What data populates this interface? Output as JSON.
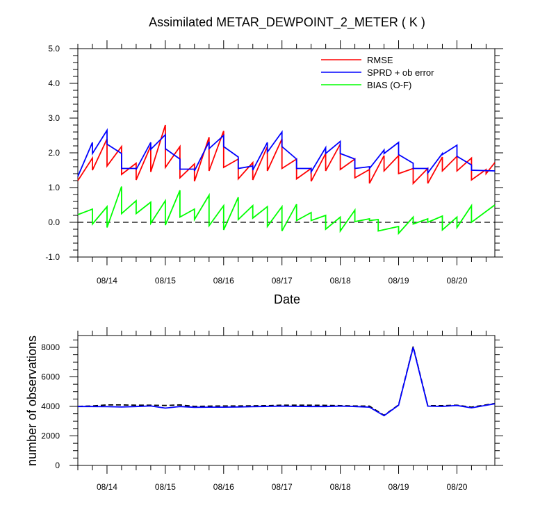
{
  "chart_data": [
    {
      "type": "line",
      "title": "Assimilated METAR_DEWPOINT_2_METER ( K )",
      "xlabel": "Date",
      "ylabel": "",
      "xlim": [
        0,
        7.15
      ],
      "ylim": [
        -1.0,
        5.0
      ],
      "x_ticks": [
        {
          "x": 0.5,
          "label": "08/14"
        },
        {
          "x": 1.5,
          "label": "08/15"
        },
        {
          "x": 2.5,
          "label": "08/16"
        },
        {
          "x": 3.5,
          "label": "08/17"
        },
        {
          "x": 4.5,
          "label": "08/18"
        },
        {
          "x": 5.5,
          "label": "08/19"
        },
        {
          "x": 6.5,
          "label": "08/20"
        }
      ],
      "y_ticks": [
        {
          "y": -1.0,
          "label": "-1.0"
        },
        {
          "y": 0.0,
          "label": "0.0"
        },
        {
          "y": 1.0,
          "label": "1.0"
        },
        {
          "y": 2.0,
          "label": "2.0"
        },
        {
          "y": 3.0,
          "label": "3.0"
        },
        {
          "y": 4.0,
          "label": "4.0"
        },
        {
          "y": 5.0,
          "label": "5.0"
        }
      ],
      "reference_line": {
        "y": 0.0,
        "style": "dashed"
      },
      "legend_position": "top-right",
      "series": [
        {
          "name": "RMSE",
          "color": "#ff0000",
          "points": [
            [
              0.0,
              1.2
            ],
            [
              0.25,
              1.85
            ],
            [
              0.25,
              1.5
            ],
            [
              0.5,
              2.4
            ],
            [
              0.5,
              1.62
            ],
            [
              0.75,
              2.18
            ],
            [
              0.75,
              1.38
            ],
            [
              1.0,
              1.7
            ],
            [
              1.0,
              1.22
            ],
            [
              1.25,
              2.2
            ],
            [
              1.25,
              1.45
            ],
            [
              1.5,
              2.8
            ],
            [
              1.5,
              1.58
            ],
            [
              1.75,
              2.18
            ],
            [
              1.75,
              1.28
            ],
            [
              2.0,
              1.68
            ],
            [
              2.0,
              1.18
            ],
            [
              2.25,
              2.45
            ],
            [
              2.25,
              1.48
            ],
            [
              2.5,
              2.63
            ],
            [
              2.5,
              1.58
            ],
            [
              2.75,
              1.82
            ],
            [
              2.75,
              1.25
            ],
            [
              3.0,
              1.72
            ],
            [
              3.0,
              1.22
            ],
            [
              3.25,
              2.18
            ],
            [
              3.25,
              1.48
            ],
            [
              3.5,
              2.4
            ],
            [
              3.5,
              1.55
            ],
            [
              3.75,
              1.82
            ],
            [
              3.75,
              1.25
            ],
            [
              4.0,
              1.55
            ],
            [
              4.0,
              1.18
            ],
            [
              4.25,
              1.98
            ],
            [
              4.25,
              1.48
            ],
            [
              4.5,
              2.25
            ],
            [
              4.5,
              1.52
            ],
            [
              4.75,
              1.82
            ],
            [
              4.75,
              1.28
            ],
            [
              5.0,
              1.52
            ],
            [
              5.0,
              1.12
            ],
            [
              5.25,
              1.92
            ],
            [
              5.25,
              1.48
            ],
            [
              5.5,
              1.92
            ],
            [
              5.5,
              1.4
            ],
            [
              5.75,
              1.55
            ],
            [
              5.75,
              1.12
            ],
            [
              6.0,
              1.55
            ],
            [
              6.0,
              1.12
            ],
            [
              6.25,
              1.88
            ],
            [
              6.25,
              1.48
            ],
            [
              6.5,
              1.9
            ],
            [
              6.5,
              1.48
            ],
            [
              6.75,
              1.85
            ],
            [
              6.75,
              1.22
            ],
            [
              7.0,
              1.52
            ],
            [
              7.0,
              1.4
            ],
            [
              7.15,
              1.72
            ]
          ]
        },
        {
          "name": "SPRD + ob error",
          "color": "#0000ff",
          "points": [
            [
              0.0,
              1.32
            ],
            [
              0.25,
              2.3
            ],
            [
              0.25,
              1.98
            ],
            [
              0.5,
              2.65
            ],
            [
              0.5,
              2.25
            ],
            [
              0.75,
              1.98
            ],
            [
              0.75,
              1.55
            ],
            [
              1.0,
              1.55
            ],
            [
              1.0,
              1.52
            ],
            [
              1.25,
              2.3
            ],
            [
              1.25,
              2.1
            ],
            [
              1.5,
              2.52
            ],
            [
              1.5,
              2.12
            ],
            [
              1.75,
              1.82
            ],
            [
              1.75,
              1.53
            ],
            [
              2.0,
              1.53
            ],
            [
              2.0,
              1.48
            ],
            [
              2.25,
              2.32
            ],
            [
              2.25,
              2.12
            ],
            [
              2.5,
              2.5
            ],
            [
              2.5,
              2.18
            ],
            [
              2.75,
              1.88
            ],
            [
              2.75,
              1.55
            ],
            [
              3.0,
              1.62
            ],
            [
              3.0,
              1.5
            ],
            [
              3.25,
              2.3
            ],
            [
              3.25,
              2.02
            ],
            [
              3.5,
              2.6
            ],
            [
              3.5,
              2.18
            ],
            [
              3.75,
              1.82
            ],
            [
              3.75,
              1.55
            ],
            [
              4.0,
              1.55
            ],
            [
              4.0,
              1.45
            ],
            [
              4.25,
              2.15
            ],
            [
              4.25,
              1.98
            ],
            [
              4.5,
              2.33
            ],
            [
              4.5,
              1.98
            ],
            [
              4.75,
              1.82
            ],
            [
              4.75,
              1.55
            ],
            [
              5.0,
              1.6
            ],
            [
              5.0,
              1.55
            ],
            [
              5.25,
              2.08
            ],
            [
              5.25,
              1.98
            ],
            [
              5.5,
              2.3
            ],
            [
              5.5,
              1.95
            ],
            [
              5.75,
              1.7
            ],
            [
              5.75,
              1.55
            ],
            [
              6.0,
              1.55
            ],
            [
              6.0,
              1.42
            ],
            [
              6.25,
              1.98
            ],
            [
              6.25,
              1.95
            ],
            [
              6.5,
              2.22
            ],
            [
              6.5,
              1.9
            ],
            [
              6.75,
              1.65
            ],
            [
              6.75,
              1.5
            ],
            [
              7.15,
              1.48
            ]
          ]
        },
        {
          "name": "BIAS (O-F)",
          "color": "#00ff00",
          "points": [
            [
              0.0,
              0.22
            ],
            [
              0.25,
              0.38
            ],
            [
              0.25,
              -0.05
            ],
            [
              0.5,
              0.45
            ],
            [
              0.5,
              -0.15
            ],
            [
              0.75,
              1.03
            ],
            [
              0.75,
              0.25
            ],
            [
              1.0,
              0.62
            ],
            [
              1.0,
              0.25
            ],
            [
              1.25,
              0.58
            ],
            [
              1.25,
              -0.03
            ],
            [
              1.5,
              0.62
            ],
            [
              1.5,
              -0.08
            ],
            [
              1.75,
              0.92
            ],
            [
              1.75,
              0.15
            ],
            [
              2.0,
              0.38
            ],
            [
              2.0,
              0.08
            ],
            [
              2.25,
              0.78
            ],
            [
              2.25,
              -0.1
            ],
            [
              2.5,
              0.48
            ],
            [
              2.5,
              -0.22
            ],
            [
              2.75,
              0.72
            ],
            [
              2.75,
              0.08
            ],
            [
              3.0,
              0.48
            ],
            [
              3.0,
              0.12
            ],
            [
              3.25,
              0.45
            ],
            [
              3.25,
              -0.12
            ],
            [
              3.5,
              0.45
            ],
            [
              3.5,
              -0.25
            ],
            [
              3.75,
              0.52
            ],
            [
              3.75,
              0.05
            ],
            [
              4.0,
              0.28
            ],
            [
              4.0,
              0.05
            ],
            [
              4.25,
              0.2
            ],
            [
              4.25,
              -0.2
            ],
            [
              4.5,
              0.15
            ],
            [
              4.5,
              -0.25
            ],
            [
              4.75,
              0.35
            ],
            [
              4.75,
              0.02
            ],
            [
              5.0,
              0.1
            ],
            [
              5.0,
              0.05
            ],
            [
              5.15,
              0.08
            ],
            [
              5.15,
              -0.25
            ],
            [
              5.5,
              -0.12
            ],
            [
              5.5,
              -0.32
            ],
            [
              5.75,
              0.15
            ],
            [
              5.75,
              -0.05
            ],
            [
              6.0,
              0.1
            ],
            [
              6.0,
              0.0
            ],
            [
              6.25,
              0.18
            ],
            [
              6.25,
              -0.22
            ],
            [
              6.5,
              0.15
            ],
            [
              6.5,
              -0.15
            ],
            [
              6.75,
              0.48
            ],
            [
              6.75,
              0.0
            ],
            [
              7.15,
              0.5
            ]
          ]
        }
      ]
    },
    {
      "type": "line",
      "title": "",
      "xlabel": "",
      "ylabel": "number of observations",
      "xlim": [
        0,
        7.15
      ],
      "ylim": [
        0,
        8800
      ],
      "x_ticks": [
        {
          "x": 0.5,
          "label": "08/14"
        },
        {
          "x": 1.5,
          "label": "08/15"
        },
        {
          "x": 2.5,
          "label": "08/16"
        },
        {
          "x": 3.5,
          "label": "08/17"
        },
        {
          "x": 4.5,
          "label": "08/18"
        },
        {
          "x": 5.5,
          "label": "08/19"
        },
        {
          "x": 6.5,
          "label": "08/20"
        }
      ],
      "y_ticks": [
        {
          "y": 0,
          "label": "0"
        },
        {
          "y": 2000,
          "label": "2000"
        },
        {
          "y": 4000,
          "label": "4000"
        },
        {
          "y": 6000,
          "label": "6000"
        },
        {
          "y": 8000,
          "label": "8000"
        }
      ],
      "series": [
        {
          "color": "#000000",
          "style": "dashed",
          "points": [
            [
              0.0,
              4000
            ],
            [
              0.25,
              4030
            ],
            [
              0.5,
              4100
            ],
            [
              0.75,
              4100
            ],
            [
              1.0,
              4080
            ],
            [
              1.25,
              4080
            ],
            [
              1.5,
              4060
            ],
            [
              1.75,
              4100
            ],
            [
              2.0,
              4000
            ],
            [
              2.25,
              4020
            ],
            [
              2.5,
              4030
            ],
            [
              2.75,
              4030
            ],
            [
              3.0,
              4040
            ],
            [
              3.25,
              4050
            ],
            [
              3.5,
              4080
            ],
            [
              3.75,
              4080
            ],
            [
              4.0,
              4080
            ],
            [
              4.25,
              4070
            ],
            [
              4.5,
              4050
            ],
            [
              4.75,
              4030
            ],
            [
              5.0,
              4020
            ],
            [
              5.25,
              3400
            ],
            [
              5.5,
              4100
            ],
            [
              5.75,
              8050
            ],
            [
              6.0,
              4050
            ],
            [
              6.25,
              4050
            ],
            [
              6.5,
              4080
            ],
            [
              6.75,
              3950
            ],
            [
              7.15,
              4200
            ]
          ]
        },
        {
          "color": "#0000ff",
          "points": [
            [
              0.0,
              3990
            ],
            [
              0.25,
              3990
            ],
            [
              0.5,
              3980
            ],
            [
              0.75,
              3960
            ],
            [
              1.0,
              3990
            ],
            [
              1.25,
              4030
            ],
            [
              1.5,
              3880
            ],
            [
              1.75,
              3990
            ],
            [
              2.0,
              3940
            ],
            [
              2.25,
              3950
            ],
            [
              2.5,
              3950
            ],
            [
              2.75,
              3960
            ],
            [
              3.0,
              3980
            ],
            [
              3.25,
              4000
            ],
            [
              3.5,
              4020
            ],
            [
              3.75,
              4000
            ],
            [
              4.0,
              3990
            ],
            [
              4.25,
              3990
            ],
            [
              4.5,
              4020
            ],
            [
              4.75,
              3990
            ],
            [
              5.0,
              3950
            ],
            [
              5.25,
              3370
            ],
            [
              5.5,
              4080
            ],
            [
              5.75,
              8000
            ],
            [
              6.0,
              4020
            ],
            [
              6.25,
              4000
            ],
            [
              6.5,
              4060
            ],
            [
              6.75,
              3900
            ],
            [
              7.15,
              4180
            ]
          ]
        }
      ]
    }
  ]
}
